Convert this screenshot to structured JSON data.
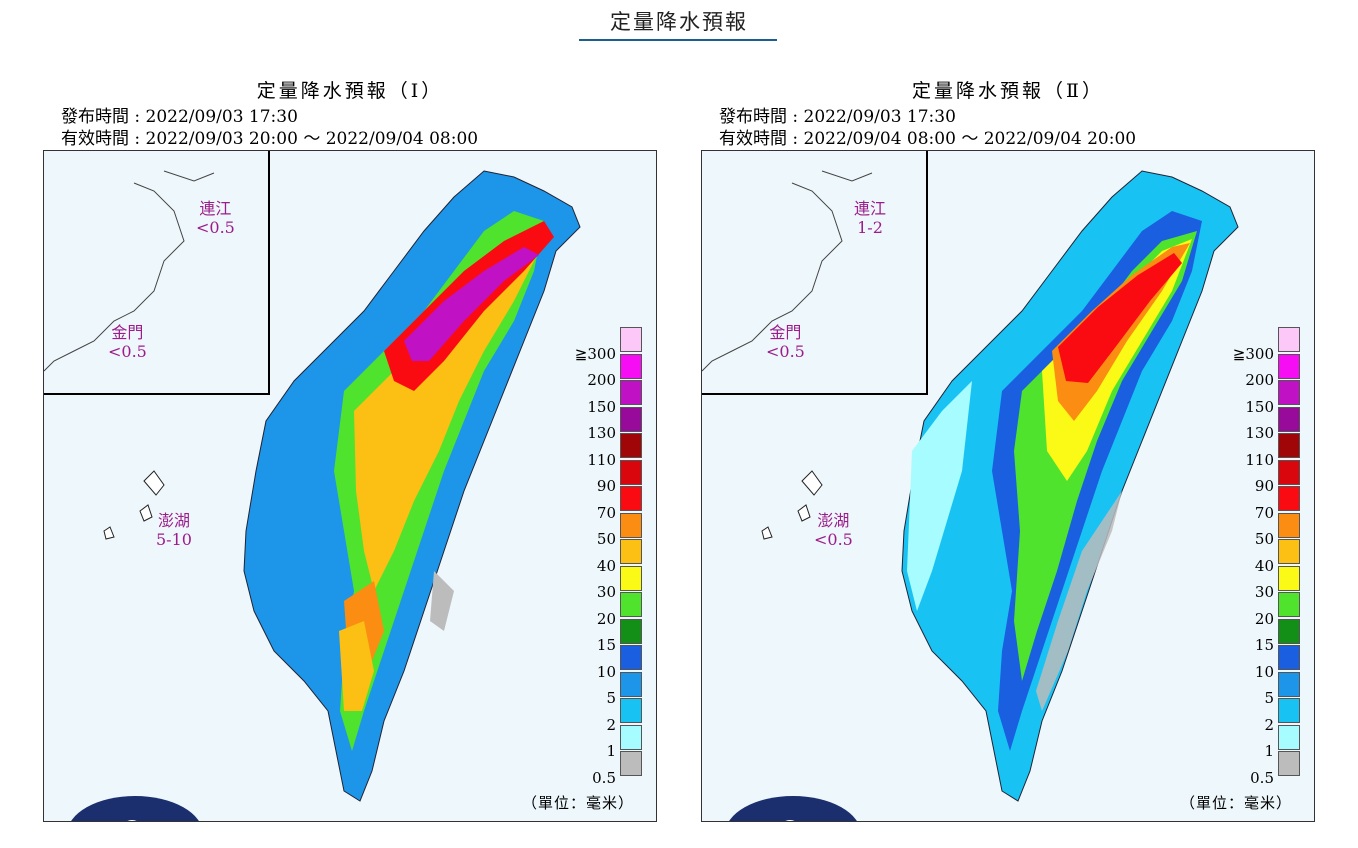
{
  "header": {
    "title": "定量降水預報"
  },
  "panels": [
    {
      "title": "定量降水預報（Ⅰ）",
      "issue_time": "發布時間 : 2022/09/03 17:30",
      "valid_time": "有效時間 : 2022/09/03 20:00 ～ 2022/09/04 08:00",
      "islands": {
        "matsu_name": "連江",
        "matsu_value": "<0.5",
        "kinmen_name": "金門",
        "kinmen_value": "<0.5",
        "penghu_name": "澎湖",
        "penghu_value": "5-10"
      },
      "unit": "（單位：毫米）"
    },
    {
      "title": "定量降水預報（Ⅱ）",
      "issue_time": "發布時間 : 2022/09/03 17:30",
      "valid_time": "有效時間 : 2022/09/04 08:00 ～ 2022/09/04 20:00",
      "islands": {
        "matsu_name": "連江",
        "matsu_value": "1-2",
        "kinmen_name": "金門",
        "kinmen_value": "<0.5",
        "penghu_name": "澎湖",
        "penghu_value": "<0.5"
      },
      "unit": "（單位：毫米）"
    }
  ],
  "legend": {
    "labels": [
      "≧300",
      "200",
      "150",
      "130",
      "110",
      "90",
      "70",
      "50",
      "40",
      "30",
      "20",
      "15",
      "10",
      "5",
      "2",
      "1",
      "0.5"
    ],
    "colors": [
      "#fbc8f8",
      "#f70df3",
      "#c011c4",
      "#970a9a",
      "#a00508",
      "#d9070d",
      "#fa0b12",
      "#fb8d13",
      "#fbc013",
      "#fbf916",
      "#4fe32d",
      "#138f17",
      "#1a5fe0",
      "#1d95e8",
      "#18c3f4",
      "#a6fcfe",
      "#bcbcbc"
    ]
  },
  "colors": {
    "accent": "#1c5f8e",
    "island_text": "#9b1c8a",
    "logo": "#1b2e6e"
  }
}
